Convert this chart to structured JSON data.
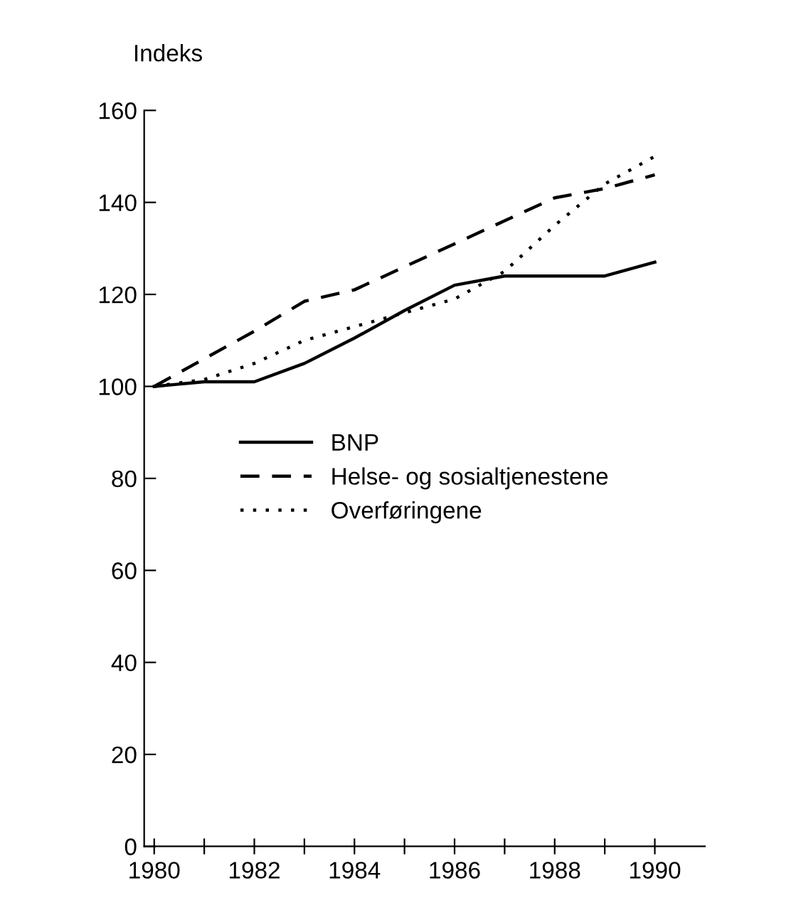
{
  "chart_data": {
    "type": "line",
    "ylabel": "Indeks",
    "x": [
      1980,
      1981,
      1982,
      1983,
      1984,
      1985,
      1986,
      1987,
      1988,
      1989,
      1990
    ],
    "series": [
      {
        "name": "BNP",
        "color": "#000000",
        "line_style": "solid",
        "values": [
          100,
          101,
          101,
          105,
          110.5,
          116.5,
          122,
          124,
          124,
          124,
          127
        ]
      },
      {
        "name": "Helse- og sosialtjenestene",
        "color": "#000000",
        "line_style": "dashed",
        "values": [
          100,
          106,
          112,
          118.5,
          121,
          126,
          131,
          136,
          141,
          143,
          146
        ]
      },
      {
        "name": "Overføringene",
        "color": "#000000",
        "line_style": "dotted",
        "values": [
          100,
          101.5,
          105,
          110,
          113,
          116,
          119,
          125,
          135,
          144,
          150
        ]
      }
    ],
    "xlim": [
      1979.8,
      1991
    ],
    "xticks": [
      1980,
      {
        "value": 1981,
        "label": null
      },
      1982,
      {
        "value": 1983,
        "label": null
      },
      1984,
      {
        "value": 1985,
        "label": null
      },
      1986,
      {
        "value": 1987,
        "label": null
      },
      1988,
      {
        "value": 1989,
        "label": null
      },
      1990
    ],
    "ylim": [
      0,
      160
    ],
    "yticks": [
      0,
      20,
      40,
      60,
      80,
      100,
      120,
      140,
      160
    ],
    "grid": false,
    "legend": "center",
    "marker": "none"
  }
}
